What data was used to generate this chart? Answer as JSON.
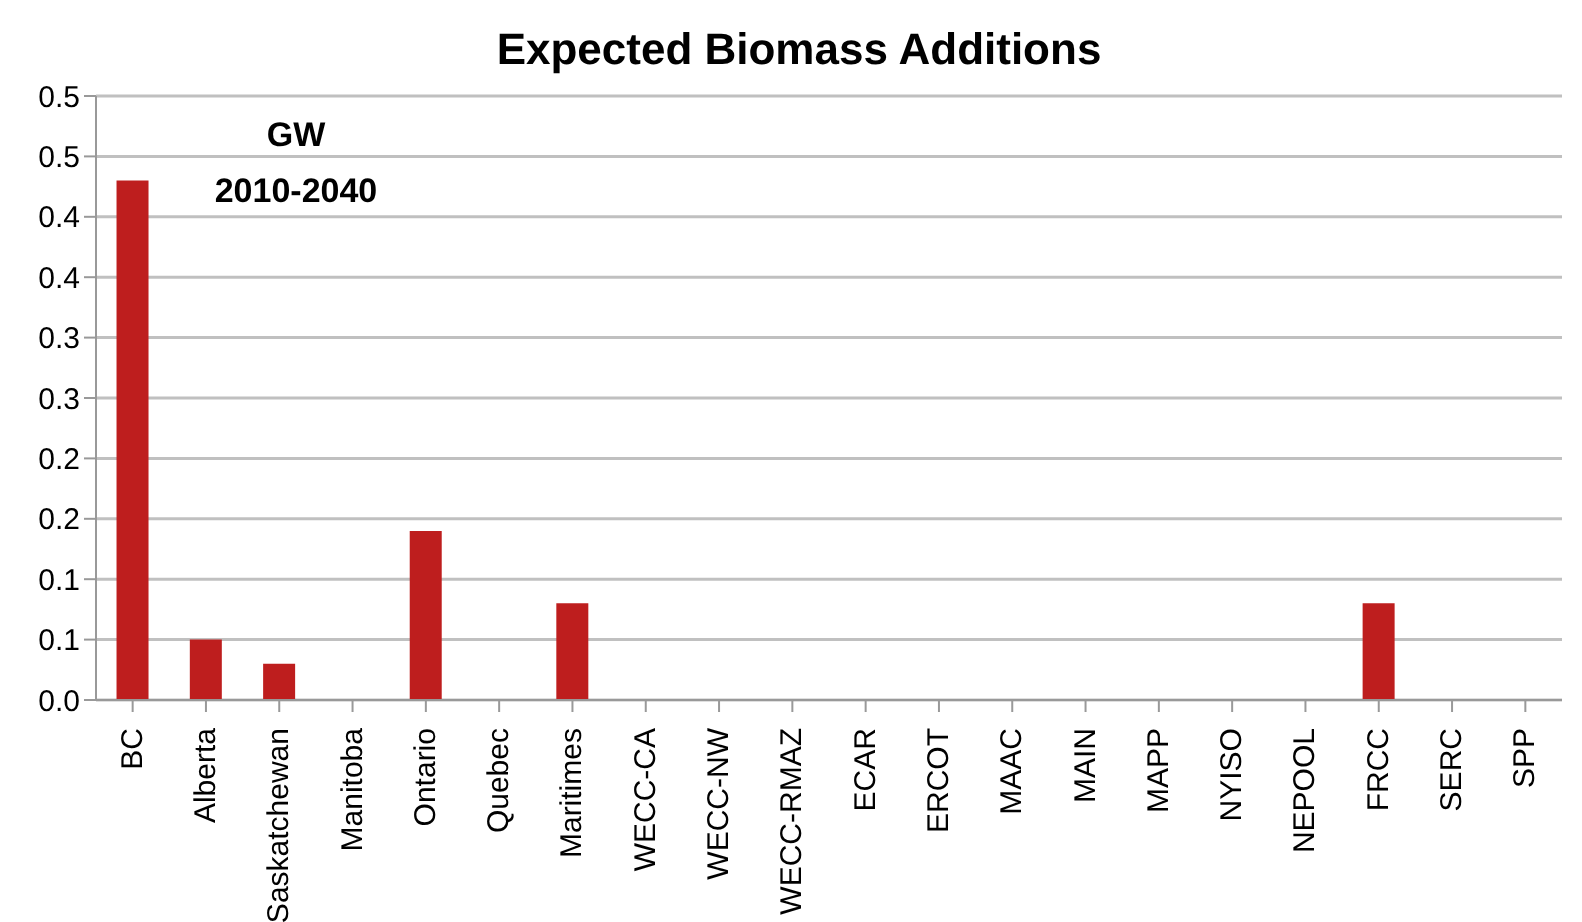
{
  "chart_data": {
    "type": "bar",
    "title": "Expected Biomass Additions",
    "annotations": [
      "GW",
      "2010-2040"
    ],
    "categories": [
      "BC",
      "Alberta",
      "Saskatchewan",
      "Manitoba",
      "Ontario",
      "Quebec",
      "Maritimes",
      "WECC-CA",
      "WECC-NW",
      "WECC-RMAZ",
      "ECAR",
      "ERCOT",
      "MAAC",
      "MAIN",
      "MAPP",
      "NYISO",
      "NEPOOL",
      "FRCC",
      "SERC",
      "SPP"
    ],
    "values": [
      0.43,
      0.05,
      0.03,
      0,
      0.14,
      0,
      0.08,
      0,
      0,
      0,
      0,
      0,
      0,
      0,
      0,
      0,
      0,
      0.08,
      0,
      0
    ],
    "color": "#be1e1e",
    "ylim": [
      0,
      0.5
    ],
    "yticks": [
      {
        "value": 0,
        "label": "0.0"
      },
      {
        "value": 0.05,
        "label": "0.1"
      },
      {
        "value": 0.1,
        "label": "0.1"
      },
      {
        "value": 0.15,
        "label": "0.2"
      },
      {
        "value": 0.2,
        "label": "0.2"
      },
      {
        "value": 0.25,
        "label": "0.3"
      },
      {
        "value": 0.3,
        "label": "0.3"
      },
      {
        "value": 0.35,
        "label": "0.4"
      },
      {
        "value": 0.4,
        "label": "0.4"
      },
      {
        "value": 0.45,
        "label": "0.5"
      },
      {
        "value": 0.5,
        "label": "0.5"
      }
    ],
    "grid": "y"
  }
}
